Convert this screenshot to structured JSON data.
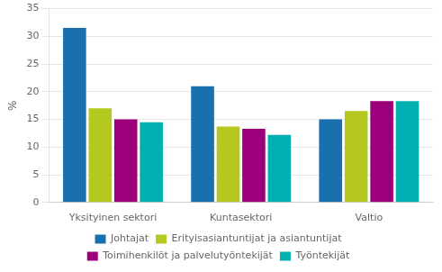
{
  "chart_data": {
    "type": "bar",
    "categories": [
      "Yksityinen sektori",
      "Kuntasektori",
      "Valtio"
    ],
    "series": [
      {
        "name": "Johtajat",
        "color": "#1a6faf",
        "values": [
          31.5,
          21.0,
          15.0
        ]
      },
      {
        "name": "Erityisasiantuntijat ja asiantuntijat",
        "color": "#b5c820",
        "values": [
          17.0,
          13.7,
          16.5
        ]
      },
      {
        "name": "Toimihenkilöt ja palvelutyöntekijät",
        "color": "#9b007a",
        "values": [
          15.0,
          13.3,
          18.3
        ]
      },
      {
        "name": "Työntekijät",
        "color": "#00b0b0",
        "values": [
          14.5,
          12.2,
          18.3
        ]
      }
    ],
    "ylabel": "%",
    "ylim": [
      0,
      35
    ],
    "yticks": [
      0,
      5,
      10,
      15,
      20,
      25,
      30,
      35
    ],
    "grid": true,
    "legend": "bottom"
  }
}
